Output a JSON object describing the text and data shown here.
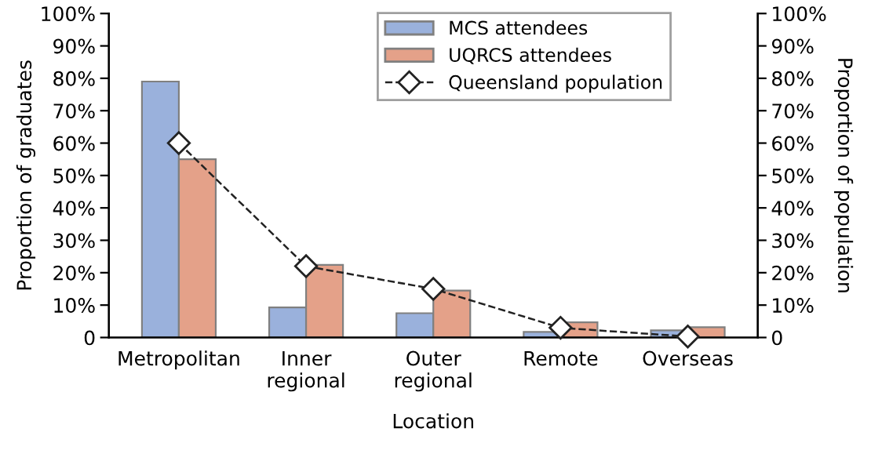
{
  "chart_data": {
    "type": "bar",
    "xlabel": "Location",
    "ylabel": "Proportion of graduates",
    "y2label": "Proportion of population",
    "categories": [
      "Metropolitan",
      "Inner\nregional",
      "Outer\nregional",
      "Remote",
      "Overseas"
    ],
    "series": [
      {
        "name": "MCS attendees",
        "color": "#9ab1dc",
        "values": [
          79,
          9.3,
          7.5,
          1.7,
          2.2
        ]
      },
      {
        "name": "UQRCS attendees",
        "color": "#e4a189",
        "values": [
          55,
          22.4,
          14.5,
          4.7,
          3.2
        ]
      },
      {
        "name": "Queensland population",
        "type": "line",
        "axis": "y2",
        "color": "#222222",
        "marker": "diamond",
        "line_style": "dashed",
        "values": [
          60,
          22,
          15,
          3,
          0.3
        ]
      }
    ],
    "ylim": [
      0,
      100
    ],
    "yticks": [
      {
        "value": 0,
        "label": "0"
      },
      {
        "value": 10,
        "label": "10%"
      },
      {
        "value": 20,
        "label": "20%"
      },
      {
        "value": 30,
        "label": "30%"
      },
      {
        "value": 40,
        "label": "40%"
      },
      {
        "value": 50,
        "label": "50%"
      },
      {
        "value": 60,
        "label": "60%"
      },
      {
        "value": 70,
        "label": "70%"
      },
      {
        "value": 80,
        "label": "80%"
      },
      {
        "value": 90,
        "label": "90%"
      },
      {
        "value": 100,
        "label": "100%"
      }
    ],
    "y2lim": [
      0,
      100
    ],
    "y2ticks": [
      {
        "value": 0,
        "label": "0"
      },
      {
        "value": 10,
        "label": "10%"
      },
      {
        "value": 20,
        "label": "20%"
      },
      {
        "value": 30,
        "label": "30%"
      },
      {
        "value": 40,
        "label": "40%"
      },
      {
        "value": 50,
        "label": "50%"
      },
      {
        "value": 60,
        "label": "60%"
      },
      {
        "value": 70,
        "label": "70%"
      },
      {
        "value": 80,
        "label": "80%"
      },
      {
        "value": 90,
        "label": "90%"
      },
      {
        "value": 100,
        "label": "100%"
      }
    ],
    "grid": false,
    "legend": "top"
  }
}
